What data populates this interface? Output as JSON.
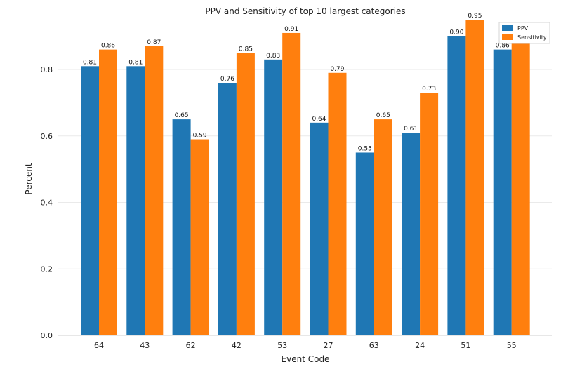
{
  "chart_data": {
    "type": "bar",
    "title": "PPV and Sensitivity of top 10 largest categories",
    "xlabel": "Event Code",
    "ylabel": "Percent",
    "categories": [
      "64",
      "43",
      "62",
      "42",
      "53",
      "27",
      "63",
      "24",
      "51",
      "55"
    ],
    "series": [
      {
        "name": "PPV",
        "color": "#1f77b4",
        "values": [
          0.81,
          0.81,
          0.65,
          0.76,
          0.83,
          0.64,
          0.55,
          0.61,
          0.9,
          0.86
        ],
        "labels": [
          "0.81",
          "0.81",
          "0.65",
          "0.76",
          "0.83",
          "0.64",
          "0.55",
          "0.61",
          "0.90",
          "0.86"
        ]
      },
      {
        "name": "Sensitivity",
        "color": "#ff7f0e",
        "values": [
          0.86,
          0.87,
          0.59,
          0.85,
          0.91,
          0.79,
          0.65,
          0.73,
          0.95,
          0.9
        ],
        "labels": [
          "0.86",
          "0.87",
          "0.59",
          "0.85",
          "0.91",
          "0.79",
          "0.65",
          "0.73",
          "0.95",
          "0.90"
        ]
      }
    ],
    "ylim": [
      0,
      0.95
    ],
    "yticks": [
      0.0,
      0.2,
      0.4,
      0.6,
      0.8
    ],
    "ytick_labels": [
      "0.0",
      "0.2",
      "0.4",
      "0.6",
      "0.8"
    ],
    "grid": true,
    "legend_position": "top-right"
  }
}
